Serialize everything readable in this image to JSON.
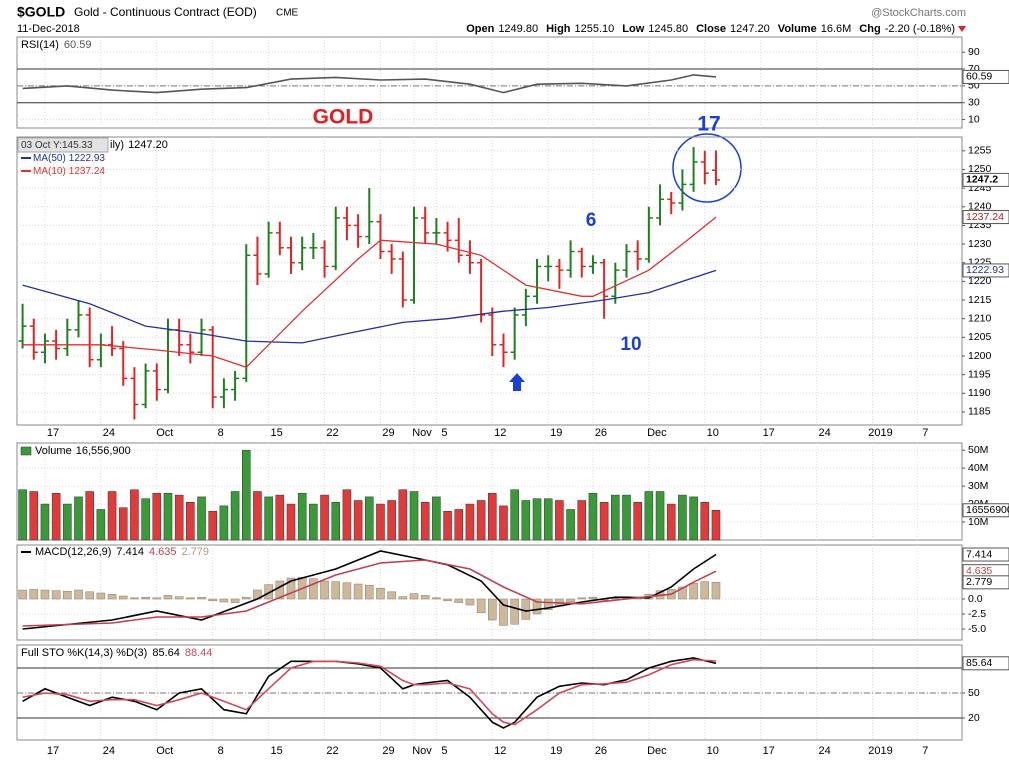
{
  "header": {
    "symbol": "$GOLD",
    "name": "Gold - Continuous Contract (EOD)",
    "exchange": "CME",
    "date": "11-Dec-2018",
    "brand": "@StockCharts.com",
    "quote": [
      {
        "label": "Open",
        "value": "1249.80"
      },
      {
        "label": "High",
        "value": "1255.10"
      },
      {
        "label": "Low",
        "value": "1245.80"
      },
      {
        "label": "Close",
        "value": "1247.20"
      },
      {
        "label": "Volume",
        "value": "16.6M"
      },
      {
        "label": "Chg",
        "value": "-2.20 (-0.18%)"
      }
    ]
  },
  "chart_data": [
    {
      "type": "line",
      "title": "RSI(14)",
      "ylim": [
        0,
        108
      ],
      "yticks": [
        10,
        30,
        50,
        70,
        90
      ],
      "bands": [
        70,
        30
      ],
      "midline": 50,
      "series": [
        {
          "color": "#555555",
          "x": [
            0,
            4,
            8,
            12,
            16,
            20,
            24,
            28,
            32,
            36,
            40,
            43,
            46,
            50,
            54,
            58,
            60,
            62
          ],
          "values": [
            47,
            50,
            45,
            42,
            46,
            48,
            58,
            60,
            57,
            58,
            52,
            42,
            52,
            53,
            50,
            57,
            63,
            60.59
          ]
        }
      ]
    },
    {
      "type": "ohlc",
      "label": "ily)",
      "close_label": "1247.20",
      "tooltip": "03 Oct Y:145.33",
      "up_color": "#1f7f1f",
      "down_color": "#e02424",
      "xlim": [
        -0.5,
        84
      ],
      "ylim": [
        1181.5,
        1258.7
      ],
      "xticks": [
        {
          "value": 2,
          "label": "17"
        },
        {
          "value": 7,
          "label": "24"
        },
        {
          "value": 12,
          "label": "Oct"
        },
        {
          "value": 17,
          "label": "8"
        },
        {
          "value": 22,
          "label": "15"
        },
        {
          "value": 27,
          "label": "22"
        },
        {
          "value": 32,
          "label": "29"
        },
        {
          "value": 35,
          "label": "Nov"
        },
        {
          "value": 37,
          "label": "5"
        },
        {
          "value": 42,
          "label": "12"
        },
        {
          "value": 47,
          "label": "19"
        },
        {
          "value": 51,
          "label": "26"
        },
        {
          "value": 56,
          "label": "Dec"
        },
        {
          "value": 61,
          "label": "10"
        },
        {
          "value": 66,
          "label": "17"
        },
        {
          "value": 71,
          "label": "24"
        },
        {
          "value": 76,
          "label": "2019"
        },
        {
          "value": 80,
          "label": "7"
        }
      ],
      "yticks": [
        1185,
        1190,
        1195,
        1200,
        1205,
        1210,
        1215,
        1220,
        1225,
        1230,
        1235,
        1240,
        1245,
        1250,
        1255
      ],
      "open": [
        1204,
        1208,
        1201,
        1204,
        1202,
        1207,
        1211,
        1199,
        1203,
        1202,
        1194,
        1187,
        1196,
        1191,
        1207,
        1203,
        1201,
        1207,
        1189,
        1191,
        1194,
        1227,
        1222,
        1233,
        1229,
        1225,
        1229,
        1229,
        1224,
        1237,
        1235,
        1232,
        1236,
        1228,
        1226,
        1215,
        1237,
        1233,
        1233,
        1231,
        1227,
        1225,
        1211,
        1203,
        1201,
        1211,
        1216,
        1224,
        1224,
        1223,
        1228,
        1224,
        1225,
        1216,
        1223,
        1228,
        1226,
        1237,
        1242,
        1241,
        1246,
        1252,
        1249.8
      ],
      "high": [
        1214,
        1210,
        1206,
        1207,
        1210,
        1215,
        1213,
        1206,
        1208,
        1204,
        1197,
        1198,
        1198,
        1210,
        1210,
        1206,
        1210,
        1208,
        1194,
        1196,
        1230,
        1232,
        1236,
        1236,
        1232,
        1232,
        1233,
        1231,
        1240,
        1240,
        1238,
        1245,
        1238,
        1230,
        1228,
        1240,
        1240,
        1237,
        1236,
        1237,
        1231,
        1226,
        1213,
        1206,
        1213,
        1218,
        1226,
        1227,
        1226,
        1231,
        1229,
        1227,
        1226,
        1225,
        1230,
        1231,
        1240,
        1246,
        1244,
        1250,
        1256,
        1255,
        1255.1
      ],
      "low": [
        1202,
        1199,
        1198,
        1199,
        1200,
        1205,
        1197,
        1197,
        1200,
        1192,
        1183,
        1186,
        1188,
        1190,
        1200,
        1198,
        1200,
        1186,
        1186,
        1188,
        1193,
        1219,
        1221,
        1227,
        1222,
        1223,
        1226,
        1221,
        1223,
        1231,
        1229,
        1230,
        1226,
        1222,
        1213,
        1214,
        1230,
        1230,
        1228,
        1225,
        1222,
        1209,
        1200,
        1197,
        1199,
        1208,
        1214,
        1220,
        1218,
        1221,
        1221,
        1222,
        1210,
        1214,
        1221,
        1223,
        1225,
        1235,
        1238,
        1239,
        1244,
        1246,
        1245.8
      ],
      "close": [
        1208,
        1201,
        1204,
        1202,
        1207,
        1211,
        1199,
        1203,
        1202,
        1194,
        1187,
        1196,
        1191,
        1207,
        1203,
        1201,
        1207,
        1189,
        1191,
        1194,
        1227,
        1222,
        1233,
        1229,
        1225,
        1229,
        1229,
        1224,
        1237,
        1235,
        1232,
        1236,
        1228,
        1226,
        1215,
        1237,
        1233,
        1233,
        1231,
        1227,
        1225,
        1211,
        1203,
        1201,
        1211,
        1216,
        1224,
        1224,
        1223,
        1228,
        1224,
        1225,
        1216,
        1223,
        1228,
        1226,
        1237,
        1242,
        1241,
        1246,
        1252,
        1249,
        1247.2
      ],
      "series": [
        {
          "name": "MA(50)",
          "color": "#2030a0",
          "x": [
            0,
            6,
            11,
            16,
            20,
            25,
            29,
            34,
            38,
            43,
            47,
            52,
            56,
            59,
            62
          ],
          "values": [
            1219,
            1214,
            1208,
            1206,
            1204,
            1203.5,
            1206,
            1209,
            1210,
            1212,
            1213,
            1215,
            1217,
            1220,
            1222.93
          ]
        },
        {
          "name": "MA(10)",
          "color": "#e03030",
          "x": [
            0,
            7,
            12,
            17,
            20,
            25,
            30,
            32,
            37,
            41,
            45,
            50,
            51,
            56,
            59,
            62
          ],
          "values": [
            1203,
            1203,
            1201.6,
            1200,
            1197,
            1212,
            1226,
            1231,
            1230,
            1227,
            1219,
            1216,
            1216,
            1223,
            1230,
            1237.24
          ]
        }
      ],
      "annotations": [
        {
          "text": "GOLD",
          "color": "#e02020"
        },
        {
          "text": "17",
          "color": "#1a3fd6"
        },
        {
          "text": "6",
          "color": "#1a3fd6"
        },
        {
          "text": "10",
          "color": "#1a3fd6"
        }
      ]
    },
    {
      "type": "bar",
      "title": "Volume",
      "last_label": "16,556,900",
      "up_color": "#3a9a3a",
      "down_color": "#e03a3a",
      "ylim": [
        0,
        54000000
      ],
      "yticks": [
        {
          "value": 10000000,
          "label": "10M"
        },
        {
          "value": 20000000,
          "label": "20M"
        },
        {
          "value": 30000000,
          "label": "30M"
        },
        {
          "value": 40000000,
          "label": "40M"
        },
        {
          "value": 50000000,
          "label": "50M"
        }
      ],
      "values": [
        28000000,
        27000000,
        20000000,
        26000000,
        20000000,
        24000000,
        27000000,
        17000000,
        27000000,
        18000000,
        28000000,
        23000000,
        26000000,
        26000000,
        25000000,
        21000000,
        24000000,
        16000000,
        19000000,
        27000000,
        50000000,
        27000000,
        24000000,
        25000000,
        20000000,
        26000000,
        20000000,
        25000000,
        21000000,
        28000000,
        22000000,
        24000000,
        20000000,
        22000000,
        28000000,
        27000000,
        21000000,
        24000000,
        16000000,
        17000000,
        20000000,
        22000000,
        26000000,
        19000000,
        28000000,
        22000000,
        23000000,
        23000000,
        22000000,
        17000000,
        22000000,
        26000000,
        21000000,
        25000000,
        25000000,
        21000000,
        27000000,
        27000000,
        20000000,
        25000000,
        24000000,
        21000000,
        16556900
      ]
    },
    {
      "type": "macd",
      "title": "MACD(12,26,9)",
      "hist_color": "#cdb89c",
      "ylim": [
        -6.83,
        9
      ],
      "yticks": [
        {
          "value": 0,
          "label": "0.0"
        },
        -2.5,
        {
          "value": -5,
          "label": "-5.0"
        }
      ],
      "histogram": [
        1.5,
        1.6,
        1.5,
        1.4,
        1.3,
        1.5,
        1.2,
        1.0,
        0.8,
        0.5,
        0.2,
        0.3,
        0.2,
        0.6,
        0.4,
        0.2,
        0.3,
        -0.3,
        -0.5,
        -0.6,
        0.3,
        1.5,
        2.4,
        3.0,
        3.5,
        3.6,
        3.4,
        3.0,
        2.9,
        2.7,
        2.5,
        2.3,
        1.8,
        1.2,
        0.4,
        0.9,
        0.6,
        0.2,
        -0.3,
        -0.6,
        -1.0,
        -2.3,
        -3.5,
        -4.4,
        -4.2,
        -3.4,
        -2.5,
        -1.8,
        -1.2,
        -0.5,
        0.2,
        0.3,
        -0.2,
        0.1,
        0.4,
        0.2,
        0.8,
        1.4,
        1.6,
        2.0,
        2.6,
        2.9,
        2.779
      ],
      "series": [
        {
          "color": "#000000",
          "x": [
            0,
            8,
            12,
            16,
            21,
            24,
            28,
            32,
            36,
            38,
            41,
            43,
            45,
            47,
            50,
            53,
            56,
            58,
            60,
            62
          ],
          "values": [
            -5,
            -3.5,
            -2,
            -3.5,
            0,
            3,
            5,
            8,
            6.5,
            5.7,
            3,
            -1,
            -2,
            -1.5,
            -0.5,
            0.3,
            0.2,
            2,
            5,
            7.414
          ]
        },
        {
          "color": "#c04050",
          "x": [
            0,
            8,
            12,
            16,
            20,
            24,
            28,
            32,
            36,
            40,
            43,
            46,
            50,
            54,
            58,
            60,
            62
          ],
          "values": [
            -4.5,
            -4,
            -3,
            -3,
            -2,
            1,
            4,
            6,
            6.5,
            5,
            2,
            -0.5,
            -0.8,
            0,
            0.8,
            2.8,
            4.635
          ]
        }
      ]
    },
    {
      "type": "line",
      "title": "Full STO %K(14,3) %D(3)",
      "ylim": [
        -6.4,
        107.6
      ],
      "yticks": [
        20,
        50
      ],
      "bands": [
        80,
        20
      ],
      "midline": 50,
      "series": [
        {
          "color": "#000000",
          "x": [
            0,
            2,
            4,
            6,
            8,
            10,
            12,
            14,
            16,
            18,
            20,
            22,
            24,
            26,
            28,
            30,
            32,
            34,
            35,
            36,
            38,
            40,
            42,
            43,
            44,
            46,
            48,
            50,
            52,
            54,
            56,
            58,
            60,
            62
          ],
          "values": [
            40,
            55,
            45,
            35,
            45,
            40,
            30,
            50,
            55,
            30,
            25,
            70,
            88,
            88,
            88,
            85,
            80,
            55,
            60,
            62,
            65,
            45,
            15,
            8,
            15,
            45,
            58,
            62,
            60,
            66,
            80,
            88,
            92,
            85.64
          ]
        },
        {
          "color": "#d04a5a",
          "x": [
            0,
            2,
            4,
            6,
            8,
            10,
            12,
            14,
            16,
            18,
            20,
            22,
            24,
            26,
            28,
            30,
            32,
            34,
            35,
            36,
            38,
            40,
            42,
            43,
            44,
            46,
            48,
            50,
            52,
            54,
            56,
            58,
            60,
            62
          ],
          "values": [
            45,
            50,
            48,
            40,
            42,
            42,
            35,
            42,
            50,
            40,
            30,
            55,
            80,
            88,
            88,
            86,
            82,
            65,
            60,
            60,
            62,
            55,
            25,
            15,
            12,
            30,
            50,
            60,
            61,
            63,
            72,
            84,
            90,
            88.44
          ]
        }
      ]
    }
  ]
}
